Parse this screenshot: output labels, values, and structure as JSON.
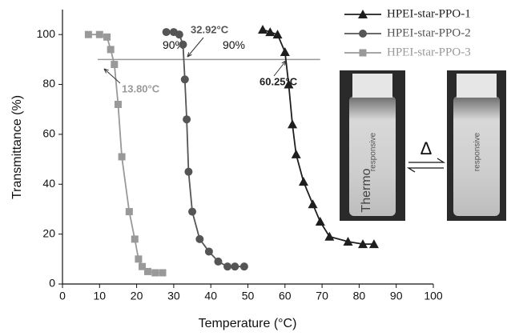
{
  "chart_data": {
    "type": "line",
    "x_label": "Temperature (°C)",
    "y_label": "Transmittance (%)",
    "xlim": [
      0,
      100
    ],
    "xticks": [
      0,
      10,
      20,
      30,
      40,
      50,
      60,
      70,
      80,
      90,
      100
    ],
    "ylim": [
      0,
      110
    ],
    "yticks": [
      0,
      20,
      40,
      60,
      80,
      100
    ],
    "legend": "top-right",
    "series": [
      {
        "name": "HPEI-star-PPO-1",
        "color": "#1e1e1e",
        "marker": "triangle",
        "x": [
          54,
          56,
          58,
          60,
          61,
          62,
          63,
          65,
          67.5,
          69.5,
          72,
          77,
          81,
          84
        ],
        "values": [
          102,
          101,
          100,
          93,
          80,
          64,
          52,
          41,
          32,
          25,
          19,
          17,
          16,
          16
        ]
      },
      {
        "name": "HPEI-star-PPO-2",
        "color": "#555555",
        "marker": "circle",
        "x": [
          28,
          30,
          31.5,
          32.5,
          33,
          33.5,
          34,
          35,
          37,
          39.5,
          42,
          44.5,
          46.5,
          49
        ],
        "values": [
          101,
          101,
          100,
          96,
          82,
          66,
          45,
          29,
          18,
          13,
          9,
          7,
          7,
          7
        ]
      },
      {
        "name": "HPEI-star-PPO-3",
        "color": "#999999",
        "marker": "square",
        "x": [
          7,
          10,
          12,
          13,
          14,
          15,
          16,
          18,
          19.5,
          20.5,
          21.5,
          23,
          25,
          27
        ],
        "values": [
          100,
          100,
          99,
          94,
          88,
          72,
          51,
          29,
          18,
          10,
          7,
          5,
          4.5,
          4.5
        ]
      }
    ],
    "reference_line": {
      "value": 90,
      "labels": [
        "90%",
        "90%"
      ]
    },
    "annotations": [
      "13.80°C",
      "32.92°C",
      "60.25°C"
    ],
    "inset": {
      "vial_text": [
        "Thermo",
        "responsive",
        "responsive"
      ],
      "symbol": "Δ"
    }
  }
}
